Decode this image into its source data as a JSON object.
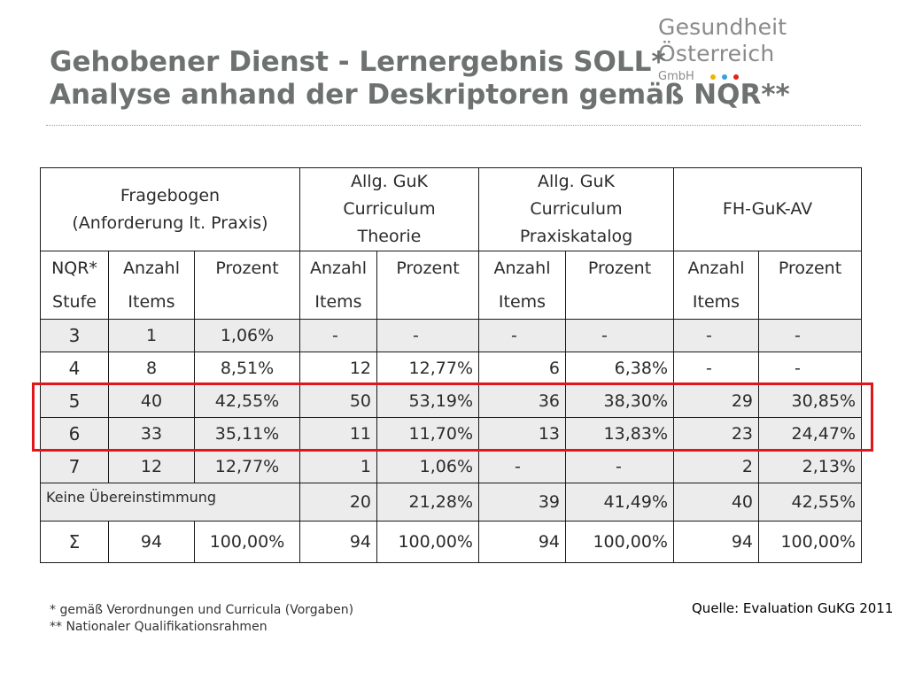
{
  "logo": {
    "name": "Gesundheit Österreich",
    "sub": "GmbH",
    "dots": [
      "#f0b400",
      "#3aa0d8",
      "#e2231a"
    ]
  },
  "title": {
    "line1": "Gehobener Dienst - Lernergebnis SOLL*",
    "line2": "Analyse anhand der Deskriptoren gemäß NQR**"
  },
  "table": {
    "groups": {
      "fragebogen_line1": "Fragebogen",
      "fragebogen_line2": "(Anforderung lt. Praxis)",
      "theorie": [
        "Allg. GuK",
        "Curriculum",
        "Theorie"
      ],
      "praxis": [
        "Allg. GuK",
        "Curriculum",
        "Praxiskatalog"
      ],
      "fh": "FH-GuK-AV"
    },
    "subheaders": {
      "nqr": [
        "NQR*",
        "Stufe"
      ],
      "anzahl": [
        "Anzahl",
        "Items"
      ],
      "prozent": "Prozent"
    },
    "rows": [
      {
        "stufe": "3",
        "a1": "1",
        "p1": "1,06%",
        "a2": "-",
        "p2": "-",
        "a3": "-",
        "p3": "-",
        "a4": "-",
        "p4": "-"
      },
      {
        "stufe": "4",
        "a1": "8",
        "p1": "8,51%",
        "a2": "12",
        "p2": "12,77%",
        "a3": "6",
        "p3": "6,38%",
        "a4": "-",
        "p4": "-"
      },
      {
        "stufe": "5",
        "a1": "40",
        "p1": "42,55%",
        "a2": "50",
        "p2": "53,19%",
        "a3": "36",
        "p3": "38,30%",
        "a4": "29",
        "p4": "30,85%"
      },
      {
        "stufe": "6",
        "a1": "33",
        "p1": "35,11%",
        "a2": "11",
        "p2": "11,70%",
        "a3": "13",
        "p3": "13,83%",
        "a4": "23",
        "p4": "24,47%"
      },
      {
        "stufe": "7",
        "a1": "12",
        "p1": "12,77%",
        "a2": "1",
        "p2": "1,06%",
        "a3": "-",
        "p3": "-",
        "a4": "2",
        "p4": "2,13%"
      }
    ],
    "keine": {
      "label": "Keine Übereinstimmung",
      "a2": "20",
      "p2": "21,28%",
      "a3": "39",
      "p3": "41,49%",
      "a4": "40",
      "p4": "42,55%"
    },
    "sum": {
      "label": "Σ",
      "a1": "94",
      "p1": "100,00%",
      "a2": "94",
      "p2": "100,00%",
      "a3": "94",
      "p3": "100,00%",
      "a4": "94",
      "p4": "100,00%"
    }
  },
  "footnotes": {
    "f1": "* gemäß Verordnungen und Curricula (Vorgaben)",
    "f2": "** Nationaler Qualifikationsrahmen"
  },
  "source": "Quelle: Evaluation GuKG 2011",
  "highlight_color": "#e0161b"
}
